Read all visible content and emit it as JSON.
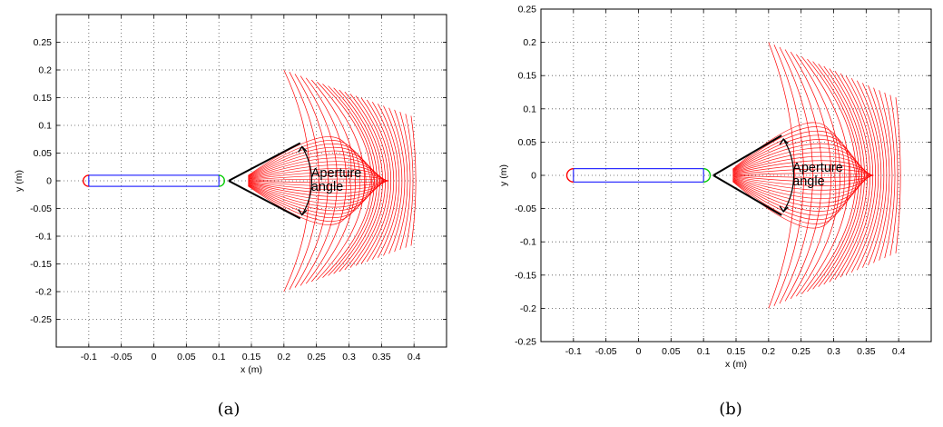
{
  "figure": {
    "captions": [
      "(a)",
      "(b)"
    ]
  },
  "chart_data": [
    {
      "type": "line",
      "xlabel": "x (m)",
      "ylabel": "y (m)",
      "xlim": [
        -0.15,
        0.45
      ],
      "ylim": [
        -0.3,
        0.3
      ],
      "xticks": [
        -0.1,
        -0.05,
        0,
        0.05,
        0.1,
        0.15,
        0.2,
        0.25,
        0.3,
        0.35,
        0.4
      ],
      "yticks": [
        -0.25,
        -0.2,
        -0.15,
        -0.1,
        -0.05,
        0,
        0.05,
        0.1,
        0.15,
        0.2,
        0.25
      ],
      "xtick_labels": [
        "-0.1",
        "-0.05",
        "0",
        "0.05",
        "0.1",
        "0.15",
        "0.2",
        "0.25",
        "0.3",
        "0.35",
        "0.4"
      ],
      "ytick_labels": [
        "-0.25",
        "-0.2",
        "-0.15",
        "-0.1",
        "-0.05",
        "0",
        "0.05",
        "0.1",
        "0.15",
        "0.2",
        "0.25"
      ],
      "grid": true,
      "body": {
        "x_start": -0.1,
        "x_end": 0.1,
        "half_width": 0.01,
        "color": "#0000ff"
      },
      "tail_arc": {
        "x": -0.1,
        "radius": 0.01,
        "color": "#ff0000"
      },
      "head_arc": {
        "x": 0.1,
        "radius": 0.01,
        "color": "#00cc00"
      },
      "fan": {
        "vertex": [
          0.115,
          0.0
        ],
        "upper_end": [
          0.225,
          0.068
        ],
        "lower_end": [
          0.225,
          -0.068
        ],
        "color": "#000000"
      },
      "trajectories": {
        "color": "#ff0000",
        "x_start": 0.2,
        "x_max": 0.4,
        "y_extent": 0.2,
        "count": 26
      },
      "annotations": [
        {
          "text_lines": [
            "Aperture",
            "angle"
          ],
          "x": 0.25,
          "y": 0.0
        }
      ]
    },
    {
      "type": "line",
      "xlabel": "x (m)",
      "ylabel": "y (m)",
      "xlim": [
        -0.15,
        0.45
      ],
      "ylim": [
        -0.25,
        0.25
      ],
      "xticks": [
        -0.1,
        -0.05,
        0,
        0.05,
        0.1,
        0.15,
        0.2,
        0.25,
        0.3,
        0.35,
        0.4
      ],
      "yticks": [
        -0.25,
        -0.2,
        -0.15,
        -0.1,
        -0.05,
        0,
        0.05,
        0.1,
        0.15,
        0.2,
        0.25
      ],
      "xtick_labels": [
        "-0.1",
        "-0.05",
        "0",
        "0.05",
        "0.1",
        "0.15",
        "0.2",
        "0.25",
        "0.3",
        "0.35",
        "0.4"
      ],
      "ytick_labels": [
        "-0.25",
        "-0.2",
        "-0.15",
        "-0.1",
        "-0.05",
        "0",
        "0.05",
        "0.1",
        "0.15",
        "0.2",
        "0.25"
      ],
      "grid": true,
      "body": {
        "x_start": -0.1,
        "x_end": 0.1,
        "half_width": 0.01,
        "color": "#0000ff"
      },
      "tail_arc": {
        "x": -0.1,
        "radius": 0.01,
        "color": "#ff0000"
      },
      "head_arc": {
        "x": 0.1,
        "radius": 0.01,
        "color": "#00cc00"
      },
      "fan": {
        "vertex": [
          0.115,
          0.0
        ],
        "upper_end": [
          0.22,
          0.06
        ],
        "lower_end": [
          0.22,
          -0.06
        ],
        "color": "#000000"
      },
      "trajectories": {
        "color": "#ff0000",
        "x_start": 0.2,
        "x_max": 0.4,
        "y_extent": 0.2,
        "count": 26
      },
      "annotations": [
        {
          "text_lines": [
            "Aperture",
            "angle"
          ],
          "x": 0.25,
          "y": 0.0
        }
      ]
    }
  ]
}
